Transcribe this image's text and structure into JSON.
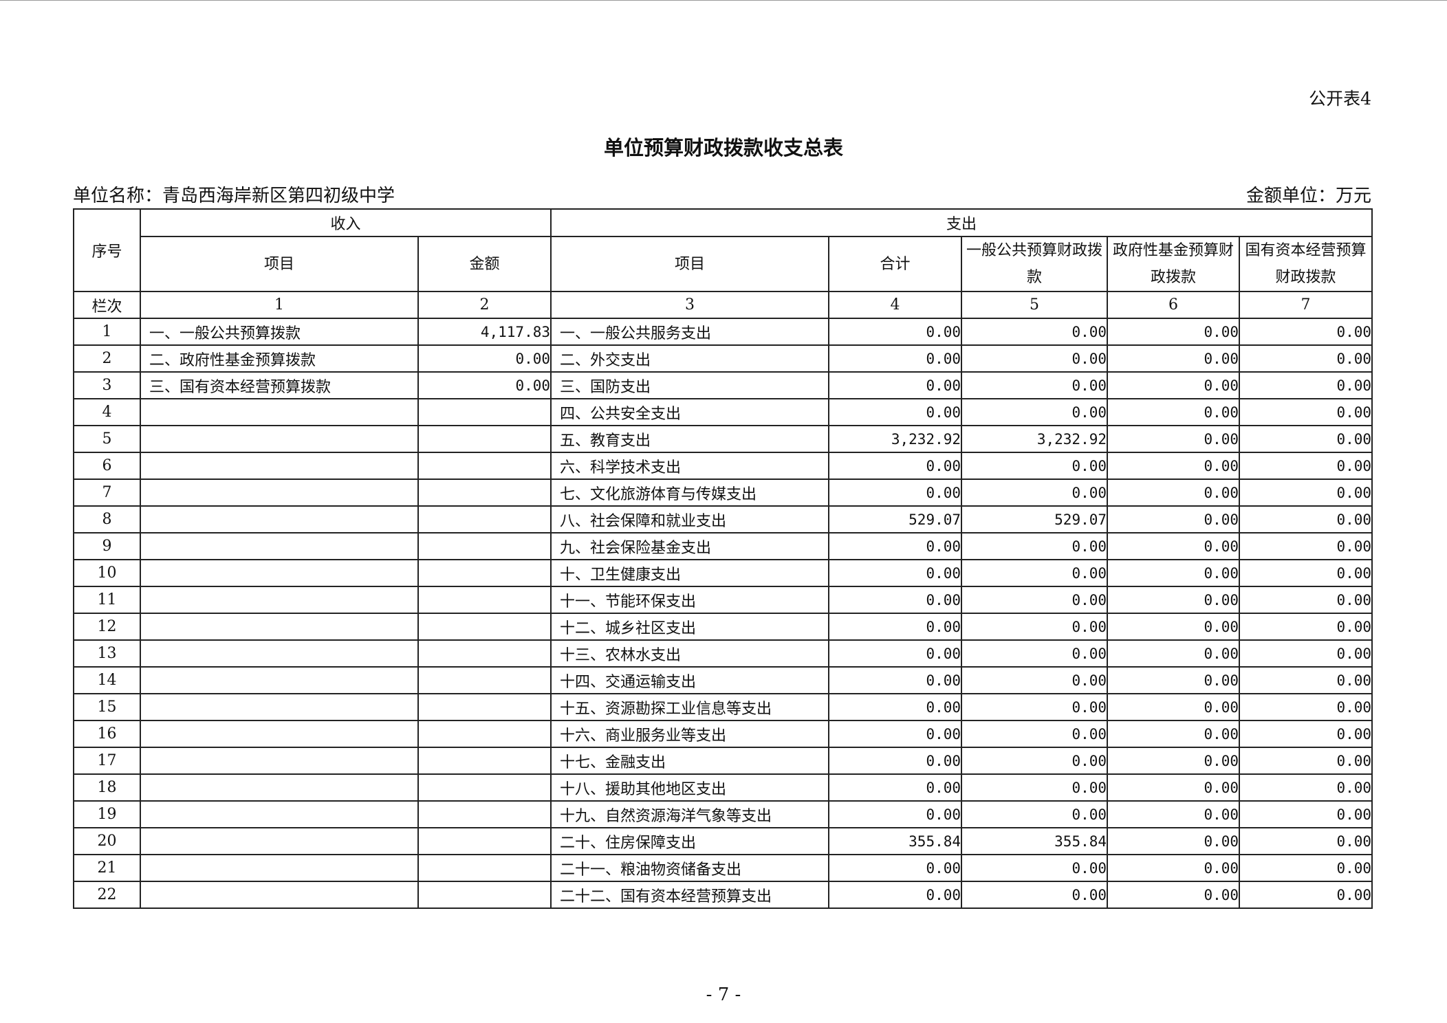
{
  "table_no": "公开表4",
  "title": "单位预算财政拨款收支总表",
  "unit_name": "单位名称：青岛西海岸新区第四初级中学",
  "amount_unit": "金额单位：万元",
  "header": {
    "seq": "序号",
    "income": "收入",
    "expense": "支出",
    "income_item": "项目",
    "income_amount": "金额",
    "expense_item": "项目",
    "total": "合计",
    "general": "一般公共预算财政拨款",
    "fund": "政府性基金预算财政拨款",
    "state_capital": "国有资本经营预算财政拨款",
    "col_label": "栏次",
    "col_nums": [
      "1",
      "2",
      "3",
      "4",
      "5",
      "6",
      "7"
    ]
  },
  "rows": [
    [
      "1",
      "一、一般公共预算拨款",
      "4,117.83",
      "一、一般公共服务支出",
      "0.00",
      "0.00",
      "0.00",
      "0.00"
    ],
    [
      "2",
      "二、政府性基金预算拨款",
      "0.00",
      "二、外交支出",
      "0.00",
      "0.00",
      "0.00",
      "0.00"
    ],
    [
      "3",
      "三、国有资本经营预算拨款",
      "0.00",
      "三、国防支出",
      "0.00",
      "0.00",
      "0.00",
      "0.00"
    ],
    [
      "4",
      "",
      "",
      "四、公共安全支出",
      "0.00",
      "0.00",
      "0.00",
      "0.00"
    ],
    [
      "5",
      "",
      "",
      "五、教育支出",
      "3,232.92",
      "3,232.92",
      "0.00",
      "0.00"
    ],
    [
      "6",
      "",
      "",
      "六、科学技术支出",
      "0.00",
      "0.00",
      "0.00",
      "0.00"
    ],
    [
      "7",
      "",
      "",
      "七、文化旅游体育与传媒支出",
      "0.00",
      "0.00",
      "0.00",
      "0.00"
    ],
    [
      "8",
      "",
      "",
      "八、社会保障和就业支出",
      "529.07",
      "529.07",
      "0.00",
      "0.00"
    ],
    [
      "9",
      "",
      "",
      "九、社会保险基金支出",
      "0.00",
      "0.00",
      "0.00",
      "0.00"
    ],
    [
      "10",
      "",
      "",
      "十、卫生健康支出",
      "0.00",
      "0.00",
      "0.00",
      "0.00"
    ],
    [
      "11",
      "",
      "",
      "十一、节能环保支出",
      "0.00",
      "0.00",
      "0.00",
      "0.00"
    ],
    [
      "12",
      "",
      "",
      "十二、城乡社区支出",
      "0.00",
      "0.00",
      "0.00",
      "0.00"
    ],
    [
      "13",
      "",
      "",
      "十三、农林水支出",
      "0.00",
      "0.00",
      "0.00",
      "0.00"
    ],
    [
      "14",
      "",
      "",
      "十四、交通运输支出",
      "0.00",
      "0.00",
      "0.00",
      "0.00"
    ],
    [
      "15",
      "",
      "",
      "十五、资源勘探工业信息等支出",
      "0.00",
      "0.00",
      "0.00",
      "0.00"
    ],
    [
      "16",
      "",
      "",
      "十六、商业服务业等支出",
      "0.00",
      "0.00",
      "0.00",
      "0.00"
    ],
    [
      "17",
      "",
      "",
      "十七、金融支出",
      "0.00",
      "0.00",
      "0.00",
      "0.00"
    ],
    [
      "18",
      "",
      "",
      "十八、援助其他地区支出",
      "0.00",
      "0.00",
      "0.00",
      "0.00"
    ],
    [
      "19",
      "",
      "",
      "十九、自然资源海洋气象等支出",
      "0.00",
      "0.00",
      "0.00",
      "0.00"
    ],
    [
      "20",
      "",
      "",
      "二十、住房保障支出",
      "355.84",
      "355.84",
      "0.00",
      "0.00"
    ],
    [
      "21",
      "",
      "",
      "二十一、粮油物资储备支出",
      "0.00",
      "0.00",
      "0.00",
      "0.00"
    ],
    [
      "22",
      "",
      "",
      "二十二、国有资本经营预算支出",
      "0.00",
      "0.00",
      "0.00",
      "0.00"
    ]
  ],
  "page_number": "- 7 -"
}
